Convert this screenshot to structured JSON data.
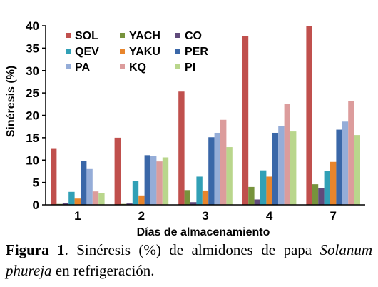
{
  "chart_data": {
    "type": "bar",
    "title": "",
    "xlabel": "Días de almacenamiento",
    "ylabel": "Sinéresis (%)",
    "ylim": [
      0,
      40
    ],
    "yticks": [
      "0",
      "5",
      "10",
      "15",
      "20",
      "25",
      "30",
      "35",
      "40"
    ],
    "categories": [
      "1",
      "2",
      "3",
      "4",
      "7"
    ],
    "grid": false,
    "legend_placement": "top-left",
    "series": [
      {
        "name": "SOL",
        "color": "#c0504d",
        "values": [
          12.5,
          15.0,
          25.3,
          37.7,
          40.0
        ]
      },
      {
        "name": "YACH",
        "color": "#77933c",
        "values": [
          0.2,
          0.2,
          3.3,
          4.0,
          4.6
        ]
      },
      {
        "name": "CO",
        "color": "#604a7b",
        "values": [
          0.4,
          0.3,
          0.6,
          1.2,
          3.7
        ]
      },
      {
        "name": "QEV",
        "color": "#31a0b6",
        "values": [
          2.9,
          5.3,
          6.3,
          7.7,
          7.6
        ]
      },
      {
        "name": "YAKU",
        "color": "#e8852c",
        "values": [
          1.4,
          2.1,
          3.2,
          6.3,
          9.6
        ]
      },
      {
        "name": "PER",
        "color": "#3a67a8",
        "values": [
          9.8,
          11.1,
          15.1,
          16.1,
          16.8
        ]
      },
      {
        "name": "PA",
        "color": "#95add8",
        "values": [
          8.0,
          10.9,
          16.1,
          17.6,
          18.6
        ]
      },
      {
        "name": "KQ",
        "color": "#dc9c9c",
        "values": [
          3.0,
          9.7,
          19.0,
          22.5,
          23.2
        ]
      },
      {
        "name": "PI",
        "color": "#b9d68c",
        "values": [
          2.7,
          10.6,
          12.9,
          16.4,
          15.6
        ]
      }
    ]
  },
  "caption": {
    "figure_label": "Figura 1",
    "text_before": ". Sinéresis (%) de almidones de papa ",
    "species": "Solanum phureja",
    "text_after": " en refrigeración."
  }
}
